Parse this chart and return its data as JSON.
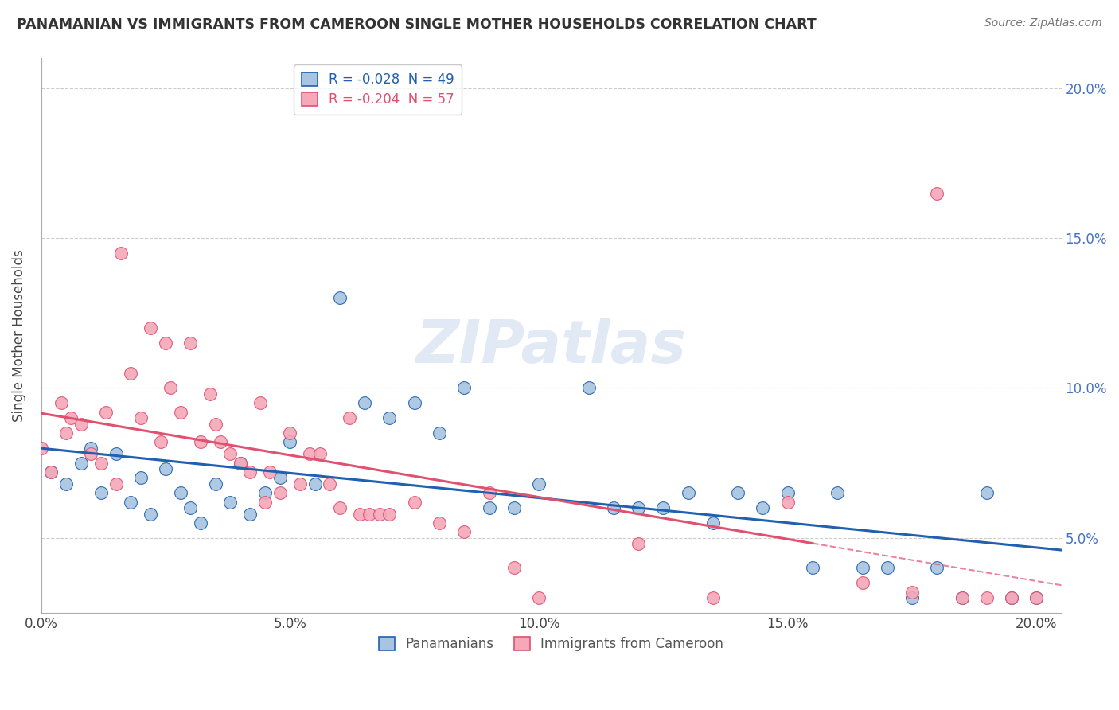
{
  "title": "PANAMANIAN VS IMMIGRANTS FROM CAMEROON SINGLE MOTHER HOUSEHOLDS CORRELATION CHART",
  "source": "Source: ZipAtlas.com",
  "ylabel": "Single Mother Households",
  "xlim": [
    0.0,
    0.205
  ],
  "ylim": [
    0.025,
    0.21
  ],
  "blue_R": -0.028,
  "blue_N": 49,
  "pink_R": -0.204,
  "pink_N": 57,
  "legend_blue_label": "R = -0.028  N = 49",
  "legend_pink_label": "R = -0.204  N = 57",
  "scatter_blue_color": "#a8c4e0",
  "scatter_pink_color": "#f4a8b8",
  "line_blue_color": "#2060b0",
  "line_pink_color": "#e05070",
  "watermark": "ZIPatlas",
  "blue_x": [
    0.002,
    0.005,
    0.008,
    0.01,
    0.012,
    0.015,
    0.018,
    0.02,
    0.022,
    0.025,
    0.028,
    0.03,
    0.032,
    0.035,
    0.038,
    0.04,
    0.042,
    0.045,
    0.048,
    0.05,
    0.055,
    0.06,
    0.065,
    0.07,
    0.075,
    0.08,
    0.085,
    0.09,
    0.095,
    0.1,
    0.11,
    0.115,
    0.12,
    0.125,
    0.13,
    0.135,
    0.14,
    0.145,
    0.15,
    0.155,
    0.16,
    0.165,
    0.17,
    0.175,
    0.18,
    0.185,
    0.19,
    0.195,
    0.2
  ],
  "blue_y": [
    0.072,
    0.068,
    0.075,
    0.08,
    0.065,
    0.078,
    0.062,
    0.07,
    0.058,
    0.073,
    0.065,
    0.06,
    0.055,
    0.068,
    0.062,
    0.075,
    0.058,
    0.065,
    0.07,
    0.082,
    0.068,
    0.13,
    0.095,
    0.09,
    0.095,
    0.085,
    0.1,
    0.06,
    0.06,
    0.068,
    0.1,
    0.06,
    0.06,
    0.06,
    0.065,
    0.055,
    0.065,
    0.06,
    0.065,
    0.04,
    0.065,
    0.04,
    0.04,
    0.03,
    0.04,
    0.03,
    0.065,
    0.03,
    0.03
  ],
  "pink_x": [
    0.0,
    0.002,
    0.004,
    0.005,
    0.006,
    0.008,
    0.01,
    0.012,
    0.013,
    0.015,
    0.016,
    0.018,
    0.02,
    0.022,
    0.024,
    0.025,
    0.026,
    0.028,
    0.03,
    0.032,
    0.034,
    0.035,
    0.036,
    0.038,
    0.04,
    0.042,
    0.044,
    0.045,
    0.046,
    0.048,
    0.05,
    0.052,
    0.054,
    0.056,
    0.058,
    0.06,
    0.062,
    0.064,
    0.066,
    0.068,
    0.07,
    0.075,
    0.08,
    0.085,
    0.09,
    0.095,
    0.1,
    0.12,
    0.135,
    0.15,
    0.165,
    0.175,
    0.18,
    0.185,
    0.19,
    0.195,
    0.2
  ],
  "pink_y": [
    0.08,
    0.072,
    0.095,
    0.085,
    0.09,
    0.088,
    0.078,
    0.075,
    0.092,
    0.068,
    0.145,
    0.105,
    0.09,
    0.12,
    0.082,
    0.115,
    0.1,
    0.092,
    0.115,
    0.082,
    0.098,
    0.088,
    0.082,
    0.078,
    0.075,
    0.072,
    0.095,
    0.062,
    0.072,
    0.065,
    0.085,
    0.068,
    0.078,
    0.078,
    0.068,
    0.06,
    0.09,
    0.058,
    0.058,
    0.058,
    0.058,
    0.062,
    0.055,
    0.052,
    0.065,
    0.04,
    0.03,
    0.048,
    0.03,
    0.062,
    0.035,
    0.032,
    0.165,
    0.03,
    0.03,
    0.03,
    0.03
  ]
}
